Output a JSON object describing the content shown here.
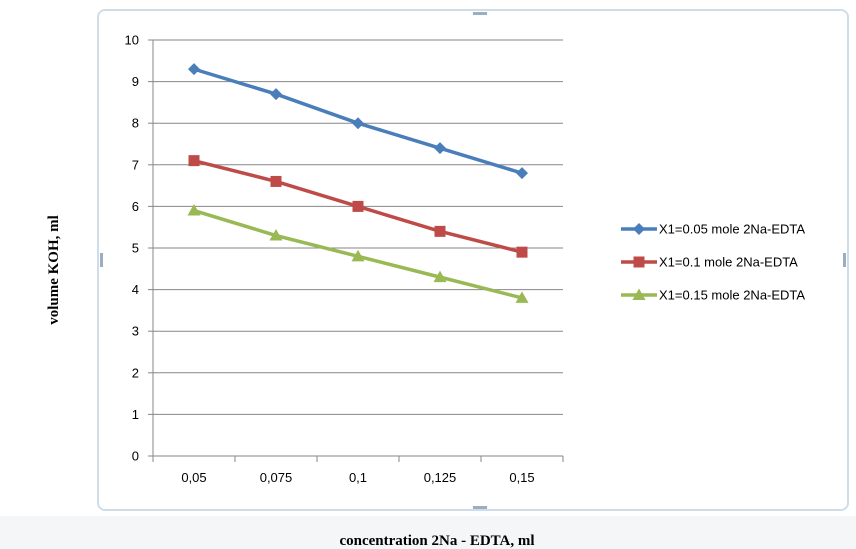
{
  "chart_data": {
    "type": "line",
    "title": "",
    "xlabel": "concentration 2Na - EDTA, ml",
    "ylabel": "volume KOH, ml",
    "categories": [
      "0,05",
      "0,075",
      "0,1",
      "0,125",
      "0,15"
    ],
    "ylim": [
      0,
      10
    ],
    "yticks": [
      "0",
      "1",
      "2",
      "3",
      "4",
      "5",
      "6",
      "7",
      "8",
      "9",
      "10"
    ],
    "grid": true,
    "legend_position": "right",
    "series": [
      {
        "name": "X1=0.05 mole 2Na-EDTA",
        "values": [
          9.3,
          8.7,
          8.0,
          7.4,
          6.8
        ],
        "color": "#4a7ebb",
        "marker": "diamond"
      },
      {
        "name": "X1=0.1 mole 2Na-EDTA",
        "values": [
          7.1,
          6.6,
          6.0,
          5.4,
          4.9
        ],
        "color": "#be4b48",
        "marker": "square"
      },
      {
        "name": "X1=0.15 mole 2Na-EDTA",
        "values": [
          5.9,
          5.3,
          4.8,
          4.3,
          3.8
        ],
        "color": "#98b954",
        "marker": "triangle"
      }
    ]
  }
}
